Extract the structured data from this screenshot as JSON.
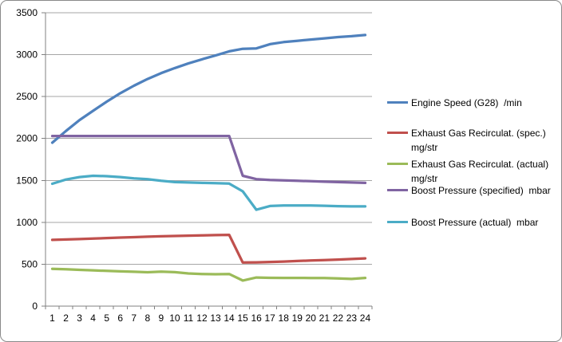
{
  "window": {
    "background": "#FFFFFF",
    "border_color": "#8A8A8A"
  },
  "chart_data": {
    "type": "line",
    "title": "",
    "xlabel": "",
    "ylabel": "",
    "grid": true,
    "legend_position": "right",
    "ylim": [
      0,
      3500
    ],
    "ytick_step": 500,
    "yticks": [
      0,
      500,
      1000,
      1500,
      2000,
      2500,
      3000,
      3500
    ],
    "x": [
      1,
      2,
      3,
      4,
      5,
      6,
      7,
      8,
      9,
      10,
      11,
      12,
      13,
      14,
      15,
      16,
      17,
      18,
      19,
      20,
      21,
      22,
      23,
      24
    ],
    "gridline_color": "#A6A6A6",
    "axis_color": "#808080",
    "text_color": "#000000",
    "series": [
      {
        "id": "engine-speed",
        "name": "Engine Speed (G28)  /min",
        "legend_lines": [
          "Engine Speed (G28)  /min"
        ],
        "color": "#4F81BD",
        "values": [
          1950,
          2090,
          2220,
          2330,
          2440,
          2540,
          2630,
          2710,
          2780,
          2840,
          2895,
          2945,
          2990,
          3040,
          3070,
          3075,
          3125,
          3150,
          3165,
          3180,
          3195,
          3210,
          3220,
          3235
        ]
      },
      {
        "id": "egr-spec",
        "name": "Exhaust Gas Recirculat. (spec.) mg/str",
        "legend_lines": [
          "Exhaust Gas Recirculat. (spec.)",
          "mg/str"
        ],
        "color": "#C0504D",
        "values": [
          790,
          795,
          800,
          806,
          812,
          818,
          823,
          828,
          833,
          837,
          841,
          844,
          847,
          850,
          520,
          522,
          527,
          532,
          538,
          544,
          550,
          555,
          562,
          570
        ]
      },
      {
        "id": "egr-actual",
        "name": "Exhaust Gas Recirculat. (actual) mg/str",
        "legend_lines": [
          "Exhaust Gas Recirculat. (actual)",
          "mg/str"
        ],
        "color": "#9BBB59",
        "values": [
          445,
          440,
          433,
          427,
          420,
          415,
          410,
          404,
          412,
          405,
          390,
          383,
          380,
          383,
          305,
          341,
          338,
          337,
          337,
          336,
          335,
          330,
          324,
          337
        ]
      },
      {
        "id": "boost-spec",
        "name": "Boost Pressure (specified)  mbar",
        "legend_lines": [
          "Boost Pressure (specified)  mbar"
        ],
        "color": "#8064A2",
        "values": [
          2030,
          2030,
          2030,
          2030,
          2030,
          2030,
          2030,
          2030,
          2030,
          2030,
          2030,
          2030,
          2030,
          2030,
          1555,
          1515,
          1505,
          1500,
          1495,
          1490,
          1485,
          1480,
          1475,
          1470
        ]
      },
      {
        "id": "boost-actual",
        "name": "Boost Pressure (actual)  mbar",
        "legend_lines": [
          "Boost Pressure (actual)  mbar"
        ],
        "color": "#4BACC6",
        "values": [
          1460,
          1510,
          1540,
          1555,
          1550,
          1540,
          1525,
          1515,
          1495,
          1480,
          1475,
          1470,
          1467,
          1462,
          1370,
          1150,
          1195,
          1200,
          1200,
          1200,
          1197,
          1193,
          1190,
          1190
        ]
      }
    ]
  }
}
